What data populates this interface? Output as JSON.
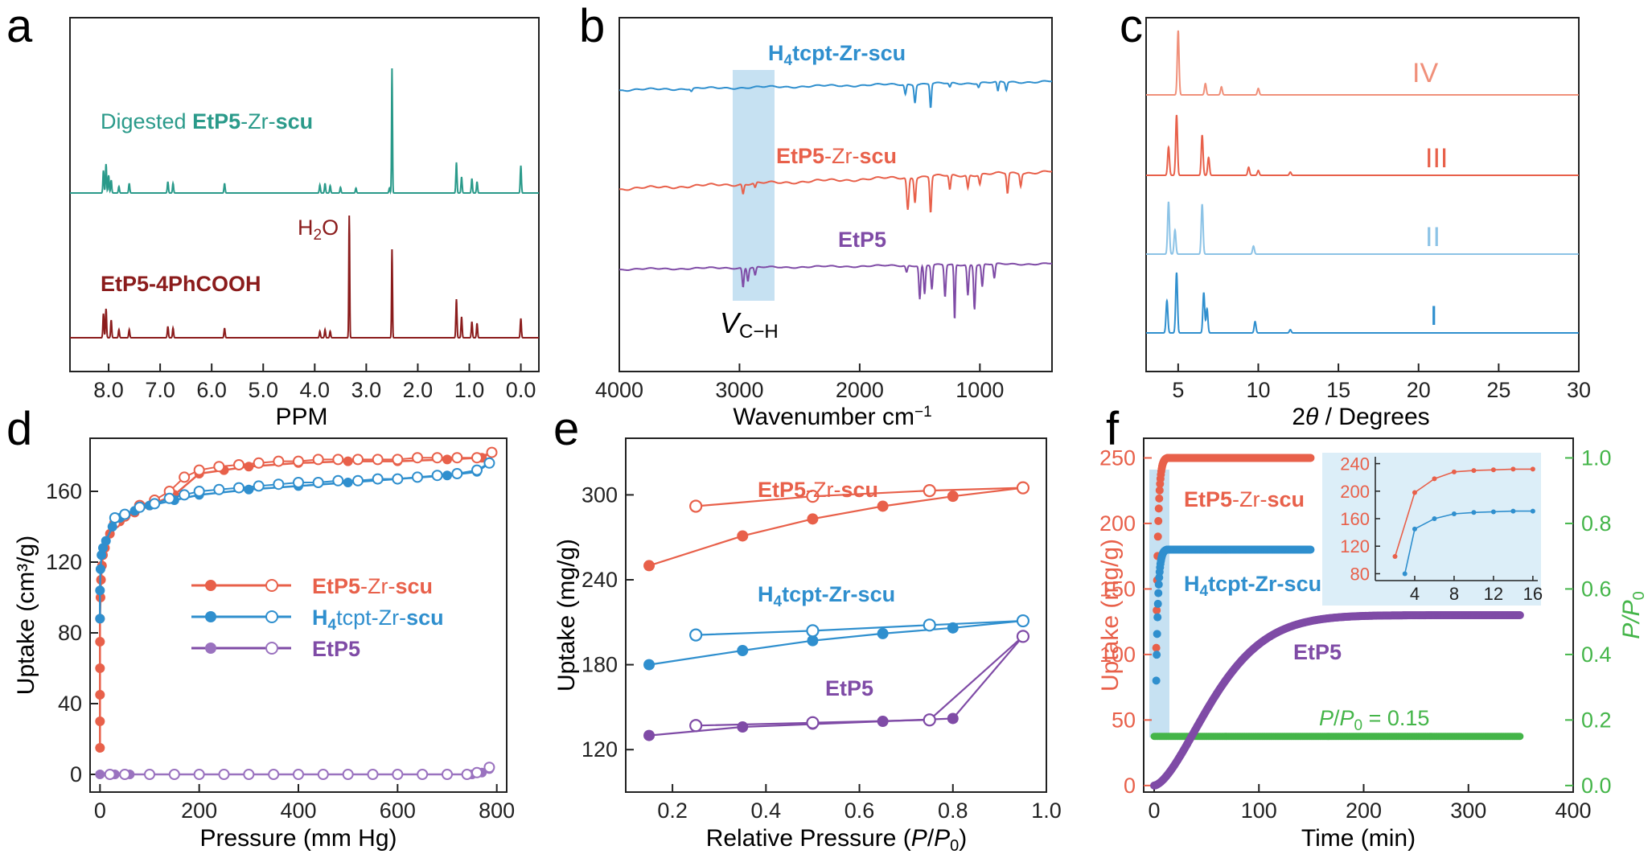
{
  "colors": {
    "red": "#e8604a",
    "blue": "#2f8fce",
    "purple": "#7f4ba6",
    "teal": "#2a9a8a",
    "maroon": "#8b1c1c",
    "lightblue": "#8cc3e6",
    "green": "#44b549",
    "peach": "#f0907a",
    "highlight": "#bcdcf0"
  },
  "panels": {
    "a": {
      "letter": "a",
      "xlabel": "PPM",
      "ticks": [
        "8.0",
        "7.0",
        "6.0",
        "5.0",
        "4.0",
        "3.0",
        "2.0",
        "1.0",
        "0.0"
      ],
      "top_label_prefix": "Digested ",
      "top_label_bold": "EtP5",
      "top_label_mid": "-Zr-",
      "top_label_bold2": "scu",
      "bottom_label": "EtP5-4PhCOOH",
      "peak_label": "H",
      "peak_label_sub": "2",
      "peak_label_end": "O"
    },
    "b": {
      "letter": "b",
      "xlabel": "Wavenumber cm",
      "xlabel_sup": "−1",
      "ticks": [
        "4000",
        "3000",
        "2000",
        "1000"
      ],
      "series": [
        {
          "pre": "H",
          "sub": "4",
          "mid": "tcpt-Zr-",
          "bold": "scu"
        },
        {
          "pre": "EtP5",
          "sub": "",
          "mid": "-Zr-",
          "bold": "scu"
        },
        {
          "pre": "EtP5",
          "sub": "",
          "mid": "",
          "bold": ""
        }
      ],
      "band_label": "V",
      "band_label_sub": "C−H"
    },
    "c": {
      "letter": "c",
      "xlabel_theta": "θ",
      "xlabel_pre": "2",
      "xlabel_post": " / Degrees",
      "ticks": [
        "5",
        "10",
        "15",
        "20",
        "25",
        "30"
      ],
      "labels": [
        "IV",
        "III",
        "II",
        "I"
      ]
    },
    "d": {
      "letter": "d"
    },
    "e": {
      "letter": "e"
    },
    "f": {
      "letter": "f",
      "annotation": "P/P",
      "annotation_sub": "0",
      "annotation_val": " = 0.15",
      "inset_xticks": [
        "4",
        "8",
        "12",
        "16"
      ],
      "inset_yticks": [
        "80",
        "120",
        "160",
        "200",
        "240"
      ]
    }
  },
  "chart_data": [
    {
      "panel": "d",
      "type": "scatter",
      "xlabel": "Pressure (mm Hg)",
      "ylabel": "Uptake (cm³/g)",
      "xlim": [
        -20,
        820
      ],
      "ylim": [
        -10,
        190
      ],
      "xticks": [
        0,
        200,
        400,
        600,
        800
      ],
      "yticks": [
        0,
        40,
        80,
        120,
        160
      ],
      "legend_placement": "center-left",
      "series": [
        {
          "name": "EtP5-Zr-scu",
          "adsorption": [
            [
              0,
              15
            ],
            [
              0,
              30
            ],
            [
              0,
              45
            ],
            [
              0,
              60
            ],
            [
              0,
              75
            ],
            [
              0,
              88
            ],
            [
              1,
              100
            ],
            [
              2,
              110
            ],
            [
              4,
              118
            ],
            [
              6,
              124
            ],
            [
              10,
              128
            ],
            [
              20,
              136
            ],
            [
              40,
              143
            ],
            [
              70,
              148
            ],
            [
              100,
              152
            ],
            [
              150,
              158
            ],
            [
              200,
              170
            ],
            [
              250,
              172
            ],
            [
              300,
              174
            ],
            [
              400,
              176
            ],
            [
              500,
              177
            ],
            [
              600,
              177
            ],
            [
              700,
              178
            ],
            [
              770,
              179
            ],
            [
              790,
              182
            ]
          ],
          "desorption": [
            [
              790,
              182
            ],
            [
              760,
              179
            ],
            [
              720,
              179
            ],
            [
              680,
              179
            ],
            [
              640,
              179
            ],
            [
              600,
              178
            ],
            [
              560,
              178
            ],
            [
              520,
              178
            ],
            [
              480,
              178
            ],
            [
              440,
              178
            ],
            [
              400,
              177
            ],
            [
              360,
              177
            ],
            [
              320,
              176
            ],
            [
              280,
              175
            ],
            [
              240,
              174
            ],
            [
              200,
              172
            ],
            [
              170,
              168
            ],
            [
              140,
              160
            ],
            [
              110,
              155
            ],
            [
              80,
              152
            ],
            [
              50,
              146
            ],
            [
              30,
              142
            ]
          ]
        },
        {
          "name": "H4tcpt-Zr-scu",
          "adsorption": [
            [
              0,
              88
            ],
            [
              0,
              104
            ],
            [
              1,
              116
            ],
            [
              3,
              124
            ],
            [
              6,
              128
            ],
            [
              12,
              132
            ],
            [
              25,
              140
            ],
            [
              40,
              145
            ],
            [
              70,
              149
            ],
            [
              100,
              152
            ],
            [
              150,
              155
            ],
            [
              200,
              158
            ],
            [
              300,
              161
            ],
            [
              400,
              163
            ],
            [
              500,
              165
            ],
            [
              600,
              167
            ],
            [
              700,
              169
            ],
            [
              760,
              171
            ],
            [
              785,
              176
            ]
          ],
          "desorption": [
            [
              785,
              176
            ],
            [
              760,
              172
            ],
            [
              720,
              170
            ],
            [
              680,
              169
            ],
            [
              640,
              168
            ],
            [
              600,
              167
            ],
            [
              560,
              167
            ],
            [
              520,
              166
            ],
            [
              480,
              166
            ],
            [
              440,
              165
            ],
            [
              400,
              165
            ],
            [
              360,
              164
            ],
            [
              320,
              163
            ],
            [
              280,
              162
            ],
            [
              240,
              161
            ],
            [
              200,
              160
            ],
            [
              170,
              158
            ],
            [
              140,
              156
            ],
            [
              110,
              153
            ],
            [
              80,
              151
            ],
            [
              50,
              147
            ],
            [
              30,
              145
            ]
          ]
        },
        {
          "name": "EtP5",
          "adsorption": [
            [
              0,
              0
            ],
            [
              30,
              0
            ],
            [
              60,
              0
            ],
            [
              100,
              0
            ],
            [
              150,
              0
            ],
            [
              200,
              0
            ],
            [
              250,
              0
            ],
            [
              300,
              0
            ],
            [
              350,
              0
            ],
            [
              400,
              0
            ],
            [
              450,
              0
            ],
            [
              500,
              0
            ],
            [
              550,
              0
            ],
            [
              600,
              0
            ],
            [
              650,
              0
            ],
            [
              700,
              0
            ],
            [
              750,
              0
            ],
            [
              770,
              1
            ],
            [
              785,
              3
            ]
          ],
          "desorption": [
            [
              785,
              4
            ],
            [
              760,
              1
            ],
            [
              740,
              0
            ],
            [
              700,
              0
            ],
            [
              650,
              0
            ],
            [
              600,
              0
            ],
            [
              550,
              0
            ],
            [
              500,
              0
            ],
            [
              450,
              0
            ],
            [
              400,
              0
            ],
            [
              350,
              0
            ],
            [
              300,
              0
            ],
            [
              250,
              0
            ],
            [
              200,
              0
            ],
            [
              150,
              0
            ],
            [
              100,
              0
            ],
            [
              50,
              0
            ],
            [
              20,
              0
            ]
          ]
        }
      ]
    },
    {
      "panel": "e",
      "type": "line",
      "xlabel": "Relative Pressure (P/P0)",
      "ylabel": "Uptake (mg/g)",
      "xlim": [
        0.1,
        1.0
      ],
      "ylim": [
        90,
        340
      ],
      "xticks": [
        0.2,
        0.4,
        0.6,
        0.8,
        1.0
      ],
      "yticks": [
        120,
        180,
        240,
        300
      ],
      "series": [
        {
          "name": "EtP5-Zr-scu",
          "adsorption": [
            [
              0.15,
              250
            ],
            [
              0.35,
              271
            ],
            [
              0.5,
              283
            ],
            [
              0.65,
              292
            ],
            [
              0.8,
              299
            ],
            [
              0.95,
              305
            ]
          ],
          "desorption": [
            [
              0.95,
              305
            ],
            [
              0.75,
              303
            ],
            [
              0.5,
              299
            ],
            [
              0.25,
              292
            ]
          ]
        },
        {
          "name": "H4tcpt-Zr-scu",
          "adsorption": [
            [
              0.15,
              180
            ],
            [
              0.35,
              190
            ],
            [
              0.5,
              197
            ],
            [
              0.65,
              202
            ],
            [
              0.8,
              206
            ],
            [
              0.95,
              211
            ]
          ],
          "desorption": [
            [
              0.95,
              211
            ],
            [
              0.75,
              208
            ],
            [
              0.5,
              204
            ],
            [
              0.25,
              201
            ]
          ]
        },
        {
          "name": "EtP5",
          "adsorption": [
            [
              0.15,
              130
            ],
            [
              0.35,
              136
            ],
            [
              0.5,
              138
            ],
            [
              0.65,
              140
            ],
            [
              0.8,
              142
            ],
            [
              0.95,
              200
            ]
          ],
          "desorption": [
            [
              0.95,
              200
            ],
            [
              0.75,
              141
            ],
            [
              0.5,
              139
            ],
            [
              0.25,
              137
            ]
          ]
        }
      ]
    },
    {
      "panel": "f",
      "type": "scatter",
      "xlabel": "Time (min)",
      "ylabel": "Uptake (mg/g)",
      "y2label": "P/P0",
      "xlim": [
        -10,
        400
      ],
      "ylim": [
        -5,
        265
      ],
      "y2lim": [
        -0.02,
        1.06
      ],
      "xticks": [
        0,
        100,
        200,
        300,
        400
      ],
      "yticks": [
        0,
        50,
        100,
        150,
        200,
        250
      ],
      "y2ticks": [
        0.0,
        0.2,
        0.4,
        0.6,
        0.8,
        1.0
      ],
      "series": [
        {
          "name": "EtP5-Zr-scu",
          "model": "kinetic",
          "plateau": 250,
          "rise_k": 0.55,
          "tmax": 150
        },
        {
          "name": "H4tcpt-Zr-scu",
          "model": "kinetic",
          "plateau": 180,
          "rise_k": 0.55,
          "tmax": 150
        },
        {
          "name": "EtP5",
          "model": "sigmoid-saturating",
          "plateau": 130,
          "tmax": 350
        },
        {
          "name": "P/P0",
          "axis": "right",
          "value": 0.15,
          "tmax": 350
        }
      ],
      "inset": {
        "xlim": [
          0,
          16.5
        ],
        "ylim": [
          70,
          250
        ],
        "series": [
          {
            "name": "EtP5-Zr-scu",
            "points": [
              [
                2,
                105
              ],
              [
                4,
                198
              ],
              [
                6,
                218
              ],
              [
                8,
                228
              ],
              [
                10,
                230
              ],
              [
                12,
                231
              ],
              [
                14,
                232
              ],
              [
                16,
                232
              ]
            ]
          },
          {
            "name": "H4tcpt-Zr-scu",
            "points": [
              [
                3,
                80
              ],
              [
                4,
                145
              ],
              [
                6,
                160
              ],
              [
                8,
                167
              ],
              [
                10,
                169
              ],
              [
                12,
                170
              ],
              [
                14,
                171
              ],
              [
                16,
                171
              ]
            ]
          }
        ]
      }
    }
  ]
}
